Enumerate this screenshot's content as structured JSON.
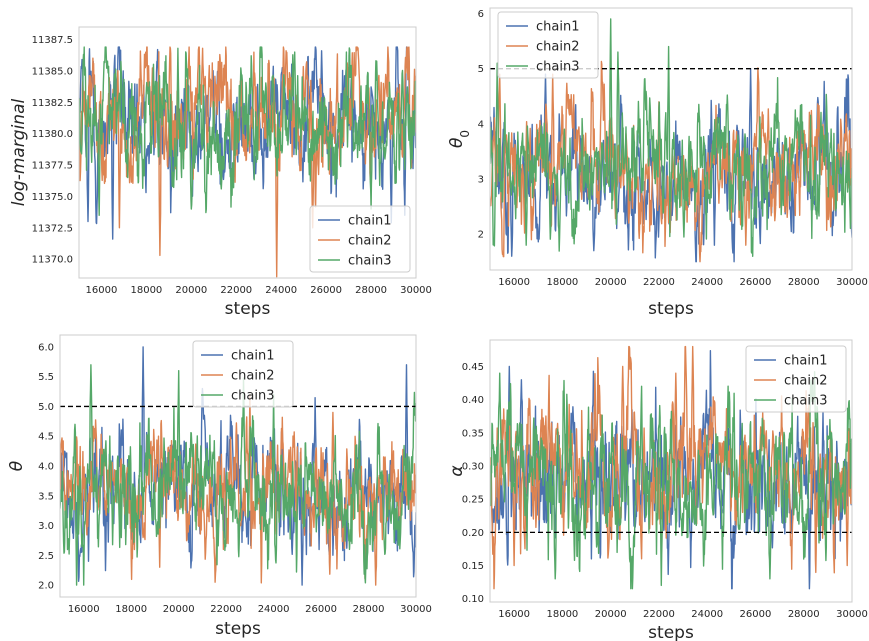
{
  "chart_data": [
    {
      "type": "line",
      "id": "logm",
      "xlabel": "steps",
      "ylabel": "log-marginal",
      "xlim": [
        15000,
        30000
      ],
      "ylim": [
        11368.5,
        11388.5
      ],
      "x_ticks": [
        "16000",
        "18000",
        "20000",
        "22000",
        "24000",
        "26000",
        "28000",
        "30000"
      ],
      "y_ticks": [
        "11370.0",
        "11372.5",
        "11375.0",
        "11377.5",
        "11380.0",
        "11382.5",
        "11385.0",
        "11387.5"
      ],
      "legend_position": "lower right",
      "reference_line": null,
      "series_style": {
        "center": 11381.2,
        "spread": 2.2,
        "min": 11368.6,
        "max": 11386.9
      },
      "series": [
        {
          "name": "chain1",
          "color": "#4c72b0",
          "mean": 11381.0,
          "spikes": [
            [
              15400,
              11373.0
            ],
            [
              16500,
              11371.6
            ],
            [
              18500,
              11386.7
            ],
            [
              25800,
              11386.6
            ],
            [
              28900,
              11372.9
            ],
            [
              29500,
              11373.5
            ]
          ]
        },
        {
          "name": "chain2",
          "color": "#dd8452",
          "mean": 11381.2,
          "spikes": [
            [
              16800,
              11372.5
            ],
            [
              18600,
              11370.3
            ],
            [
              20500,
              11386.8
            ],
            [
              23800,
              11368.6
            ],
            [
              25400,
              11372.5
            ],
            [
              27400,
              11386.7
            ]
          ]
        },
        {
          "name": "chain3",
          "color": "#55a868",
          "mean": 11381.3,
          "spikes": [
            [
              15900,
              11373.5
            ],
            [
              19400,
              11386.8
            ],
            [
              20000,
              11374.0
            ],
            [
              24600,
              11386.5
            ],
            [
              28000,
              11374.0
            ]
          ]
        }
      ]
    },
    {
      "type": "line",
      "id": "theta0",
      "xlabel": "steps",
      "ylabel": "θ0",
      "xlim": [
        15000,
        30000
      ],
      "ylim": [
        1.35,
        6.1
      ],
      "x_ticks": [
        "16000",
        "18000",
        "20000",
        "22000",
        "24000",
        "26000",
        "28000",
        "30000"
      ],
      "y_ticks": [
        "2",
        "3",
        "4",
        "5",
        "6"
      ],
      "legend_position": "upper left",
      "reference_line": 5.0,
      "series_style": {
        "center": 3.2,
        "spread": 0.5,
        "min": 1.5,
        "max": 5.9
      },
      "series": [
        {
          "name": "chain1",
          "color": "#4c72b0",
          "mean": 3.1,
          "spikes": [
            [
              15900,
              1.6
            ],
            [
              17300,
              4.9
            ],
            [
              25800,
              5.0
            ],
            [
              19300,
              1.7
            ],
            [
              24300,
              1.8
            ]
          ]
        },
        {
          "name": "chain2",
          "color": "#dd8452",
          "mean": 3.3,
          "spikes": [
            [
              15400,
              4.9
            ],
            [
              17600,
              4.9
            ],
            [
              23700,
              1.5
            ],
            [
              25600,
              1.8
            ],
            [
              22000,
              4.4
            ]
          ]
        },
        {
          "name": "chain3",
          "color": "#55a868",
          "mean": 3.25,
          "spikes": [
            [
              20000,
              5.9
            ],
            [
              20300,
              5.3
            ],
            [
              22400,
              5.4
            ],
            [
              15300,
              5.1
            ],
            [
              16500,
              1.8
            ]
          ]
        }
      ]
    },
    {
      "type": "line",
      "id": "theta",
      "xlabel": "steps",
      "ylabel": "θ",
      "xlim": [
        15000,
        30000
      ],
      "ylim": [
        1.8,
        6.2
      ],
      "x_ticks": [
        "16000",
        "18000",
        "20000",
        "22000",
        "24000",
        "26000",
        "28000",
        "30000"
      ],
      "y_ticks": [
        "2.0",
        "2.5",
        "3.0",
        "3.5",
        "4.0",
        "4.5",
        "5.0",
        "5.5",
        "6.0"
      ],
      "legend_position": "upper center",
      "reference_line": 5.0,
      "series_style": {
        "center": 3.6,
        "spread": 0.45,
        "min": 2.0,
        "max": 6.0
      },
      "series": [
        {
          "name": "chain1",
          "color": "#4c72b0",
          "mean": 3.55,
          "spikes": [
            [
              18500,
              6.0
            ],
            [
              29600,
              5.7
            ],
            [
              25200,
              2.0
            ],
            [
              21000,
              5.3
            ],
            [
              16200,
              2.4
            ]
          ]
        },
        {
          "name": "chain2",
          "color": "#dd8452",
          "mean": 3.6,
          "spikes": [
            [
              28300,
              2.0
            ],
            [
              23000,
              5.2
            ],
            [
              19200,
              2.3
            ],
            [
              26500,
              4.9
            ]
          ]
        },
        {
          "name": "chain3",
          "color": "#55a868",
          "mean": 3.65,
          "spikes": [
            [
              16300,
              5.7
            ],
            [
              15700,
              2.0
            ],
            [
              20000,
              5.6
            ],
            [
              24000,
              5.2
            ],
            [
              27200,
              2.6
            ]
          ]
        }
      ]
    },
    {
      "type": "line",
      "id": "alpha",
      "xlabel": "steps",
      "ylabel": "α",
      "xlim": [
        15000,
        30000
      ],
      "ylim": [
        0.095,
        0.49
      ],
      "x_ticks": [
        "16000",
        "18000",
        "20000",
        "22000",
        "24000",
        "26000",
        "28000",
        "30000"
      ],
      "y_ticks": [
        "0.10",
        "0.15",
        "0.20",
        "0.25",
        "0.30",
        "0.35",
        "0.40",
        "0.45"
      ],
      "legend_position": "upper right",
      "reference_line": 0.2,
      "series_style": {
        "center": 0.285,
        "spread": 0.05,
        "min": 0.115,
        "max": 0.48
      },
      "series": [
        {
          "name": "chain1",
          "color": "#4c72b0",
          "mean": 0.28,
          "spikes": [
            [
              15800,
              0.45
            ],
            [
              16300,
              0.43
            ],
            [
              19200,
              0.16
            ],
            [
              20300,
              0.19
            ]
          ]
        },
        {
          "name": "chain2",
          "color": "#dd8452",
          "mean": 0.29,
          "spikes": [
            [
              23400,
              0.48
            ],
            [
              22700,
              0.44
            ],
            [
              16000,
              0.15
            ],
            [
              29800,
              0.15
            ],
            [
              20500,
              0.45
            ]
          ]
        },
        {
          "name": "chain3",
          "color": "#55a868",
          "mean": 0.275,
          "spikes": [
            [
              15400,
              0.44
            ],
            [
              22100,
              0.12
            ],
            [
              17700,
              0.13
            ],
            [
              26600,
              0.13
            ]
          ]
        }
      ]
    }
  ]
}
